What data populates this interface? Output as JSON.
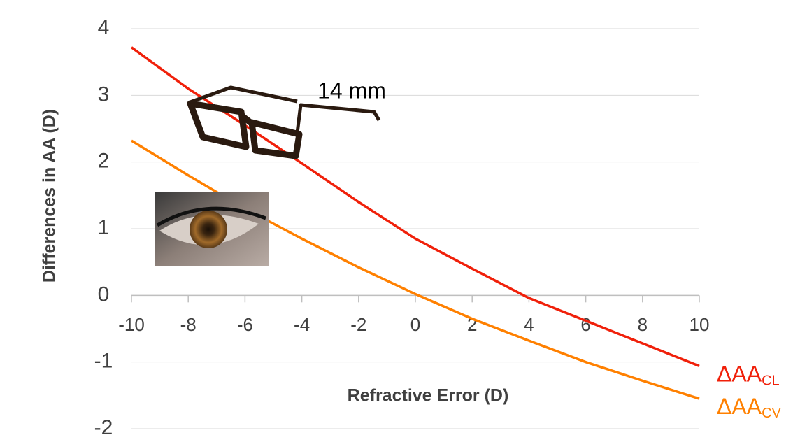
{
  "chart_data": {
    "type": "line",
    "xlabel": "Refractive Error (D)",
    "ylabel": "Differences in AA (D)",
    "annotation": "14 mm",
    "x": [
      -10,
      -8,
      -6,
      -4,
      -2,
      0,
      2,
      4,
      6,
      8,
      10
    ],
    "series": [
      {
        "name": "ΔAA",
        "subscript": "CL",
        "color": "#f0200a",
        "values": [
          3.72,
          3.1,
          2.55,
          1.98,
          1.4,
          0.85,
          0.4,
          -0.04,
          -0.38,
          -0.72,
          -1.06
        ]
      },
      {
        "name": "ΔAA",
        "subscript": "CV",
        "color": "#ff8000",
        "values": [
          2.32,
          1.8,
          1.3,
          0.85,
          0.42,
          0.02,
          -0.35,
          -0.68,
          -1.0,
          -1.28,
          -1.55
        ]
      }
    ],
    "xlim": [
      -10,
      10
    ],
    "ylim": [
      -2,
      4
    ],
    "xticks": [
      -10,
      -8,
      -6,
      -4,
      -2,
      0,
      2,
      4,
      6,
      8,
      10
    ],
    "yticks": [
      -2,
      -1,
      0,
      1,
      2,
      3,
      4
    ],
    "grid": true
  }
}
